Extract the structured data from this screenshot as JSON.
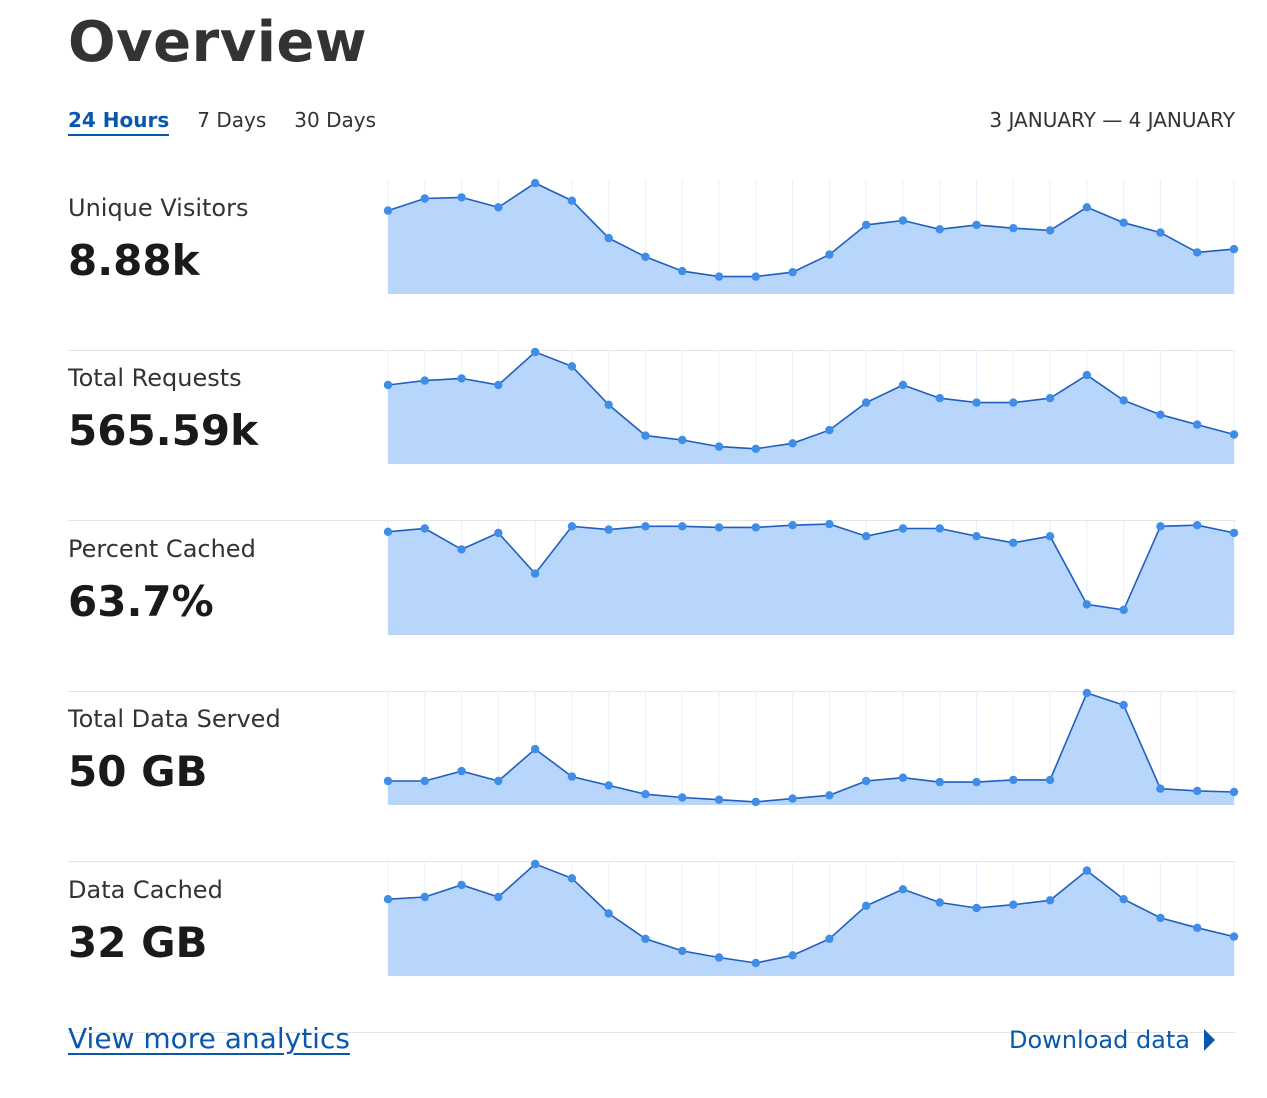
{
  "header": {
    "title": "Overview"
  },
  "tabs": [
    {
      "label": "24 Hours",
      "active": true
    },
    {
      "label": "7 Days",
      "active": false
    },
    {
      "label": "30 Days",
      "active": false
    }
  ],
  "date_range": "3 JANUARY — 4 JANUARY",
  "colors": {
    "accent": "#0a58ad",
    "line": "#1f5fbf",
    "fill": "#b8d6fc",
    "point": "#3f8de8"
  },
  "chart_data": [
    {
      "type": "area",
      "title": "Unique Visitors",
      "value_label": "8.88k",
      "ylim": [
        0,
        100
      ],
      "values": [
        74,
        85,
        86,
        77,
        99,
        83,
        49,
        32,
        19,
        14,
        14,
        18,
        34,
        61,
        65,
        57,
        61,
        58,
        56,
        77,
        63,
        54,
        36,
        39
      ]
    },
    {
      "type": "area",
      "title": "Total Requests",
      "value_label": "565.59k",
      "ylim": [
        0,
        100
      ],
      "values": [
        70,
        74,
        76,
        70,
        100,
        87,
        52,
        24,
        20,
        14,
        12,
        17,
        29,
        54,
        70,
        58,
        54,
        54,
        58,
        79,
        56,
        43,
        34,
        25
      ]
    },
    {
      "type": "area",
      "title": "Percent Cached",
      "value_label": "63.7%",
      "ylim": [
        0,
        100
      ],
      "values": [
        92,
        95,
        76,
        91,
        54,
        97,
        94,
        97,
        97,
        96,
        96,
        98,
        99,
        88,
        95,
        95,
        88,
        82,
        88,
        26,
        21,
        97,
        98,
        91
      ]
    },
    {
      "type": "area",
      "title": "Total Data Served",
      "value_label": "50 GB",
      "ylim": [
        0,
        100
      ],
      "values": [
        20,
        20,
        29,
        20,
        49,
        24,
        16,
        8,
        5,
        3,
        1,
        4,
        7,
        20,
        23,
        19,
        19,
        21,
        21,
        100,
        89,
        13,
        11,
        10
      ]
    },
    {
      "type": "area",
      "title": "Data Cached",
      "value_label": "32 GB",
      "ylim": [
        0,
        100
      ],
      "values": [
        68,
        70,
        81,
        70,
        100,
        87,
        55,
        32,
        21,
        15,
        10,
        17,
        32,
        62,
        77,
        65,
        60,
        63,
        67,
        94,
        68,
        51,
        42,
        34
      ]
    }
  ],
  "footer": {
    "more_link": "View more analytics",
    "download_label": "Download data"
  }
}
